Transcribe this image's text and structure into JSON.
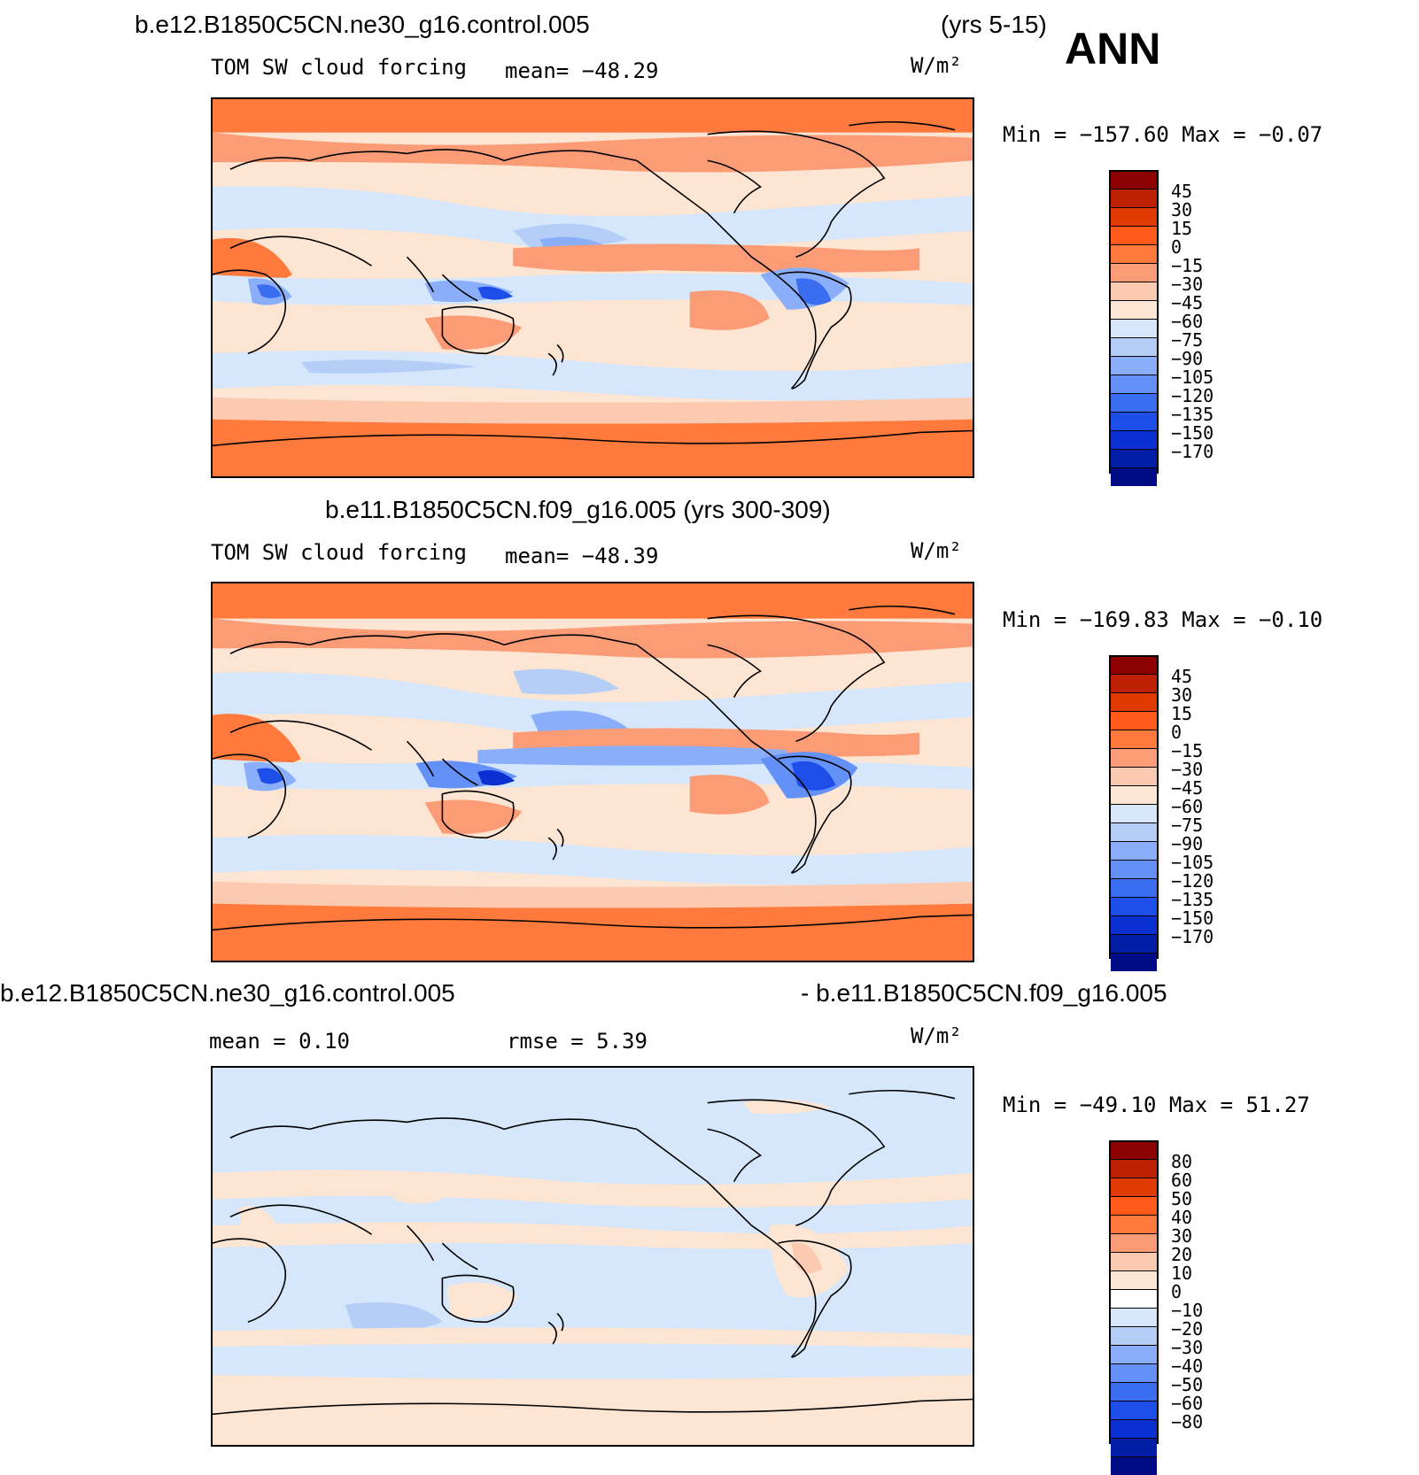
{
  "header": {
    "case_title": "b.e12.B1850C5CN.ne30_g16.control.005",
    "years": "(yrs 5-15)",
    "season": "ANN"
  },
  "colors": {
    "forcing_scale": [
      "#8b0000",
      "#bd2000",
      "#e03a00",
      "#ff5a1a",
      "#ff7a3c",
      "#fb9c76",
      "#fccab0",
      "#fde5d3",
      "#d6e7fb",
      "#b4cef8",
      "#8aaefa",
      "#6491f7",
      "#3a6df0",
      "#1e4ee8",
      "#0a30d2",
      "#001fa6",
      "#000c85"
    ],
    "diff_scale": [
      "#8b0000",
      "#bd2000",
      "#e03a00",
      "#ff5a1a",
      "#ff7a3c",
      "#fb9c76",
      "#fccab0",
      "#fde5d3",
      "#ffffff",
      "#d6e7fb",
      "#b4cef8",
      "#8aaefa",
      "#6491f7",
      "#3a6df0",
      "#1e4ee8",
      "#0a30d2",
      "#001fa6",
      "#000c85"
    ],
    "land_outline": "#000000"
  },
  "panels": [
    {
      "subtitle": "TOM SW cloud forcing",
      "mean_text": "mean= −48.29",
      "units": "W/m²",
      "minmax": "Min = −157.60 Max =  −0.07",
      "colorbar_ticks": [
        "45",
        "30",
        "15",
        "0",
        "−15",
        "−30",
        "−45",
        "−60",
        "−75",
        "−90",
        "−105",
        "−120",
        "−135",
        "−150",
        "−170"
      ]
    },
    {
      "title": "b.e11.B1850C5CN.f09_g16.005 (yrs 300-309)",
      "subtitle": "TOM SW cloud forcing",
      "mean_text": "mean= −48.39",
      "units": "W/m²",
      "minmax": "Min = −169.83 Max =  −0.10",
      "colorbar_ticks": [
        "45",
        "30",
        "15",
        "0",
        "−15",
        "−30",
        "−45",
        "−60",
        "−75",
        "−90",
        "−105",
        "−120",
        "−135",
        "−150",
        "−170"
      ]
    },
    {
      "title_left": "b.e12.B1850C5CN.ne30_g16.control.005",
      "title_right": "- b.e11.B1850C5CN.f09_g16.005",
      "mean_text": "mean =   0.10",
      "rmse_text": "rmse =   5.39",
      "units": "W/m²",
      "minmax": "Min = −49.10 Max =  51.27",
      "colorbar_ticks": [
        "80",
        "60",
        "50",
        "40",
        "30",
        "20",
        "10",
        "0",
        "−10",
        "−20",
        "−30",
        "−40",
        "−50",
        "−60",
        "−80"
      ]
    }
  ]
}
